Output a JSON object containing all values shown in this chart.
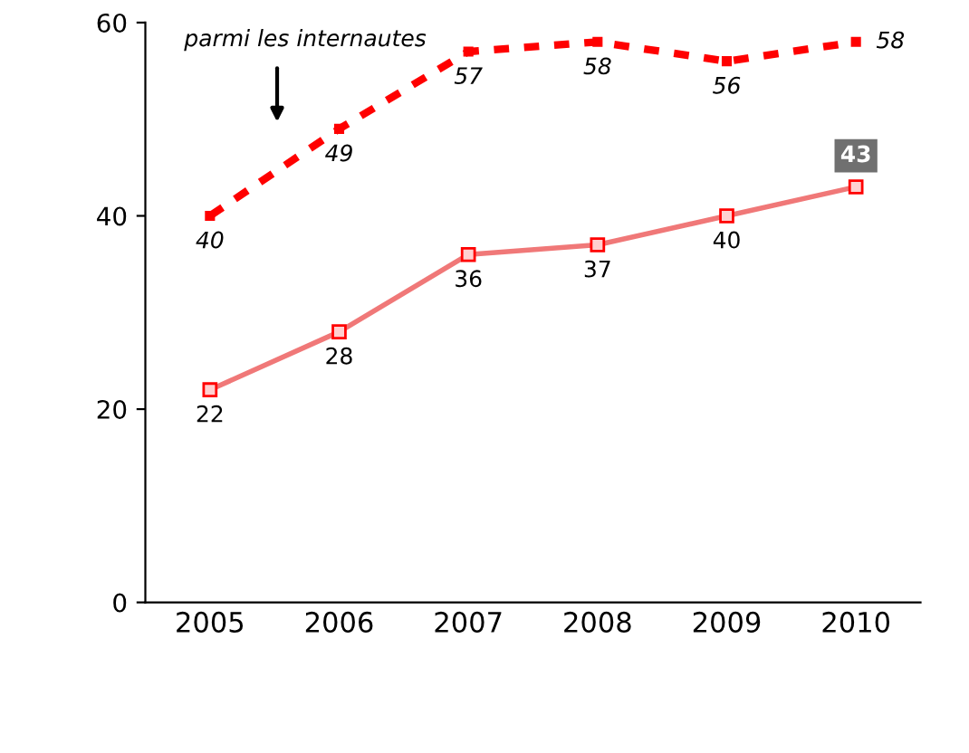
{
  "chart_data": {
    "type": "line",
    "categories": [
      "2005",
      "2006",
      "2007",
      "2008",
      "2009",
      "2010"
    ],
    "series": [
      {
        "color": "#ff0000",
        "values": [
          40,
          49,
          57,
          58,
          56,
          58
        ],
        "line_style": "dashed",
        "marker": "square"
      },
      {
        "color": "#f07878",
        "values": [
          22,
          28,
          36,
          37,
          40,
          43
        ],
        "line_style": "solid",
        "marker": "square"
      }
    ],
    "ylim": [
      0,
      60
    ],
    "yticks": [
      0,
      20,
      40,
      60
    ],
    "data_labels": true,
    "grid": false,
    "annotations": [
      "parmi les internautes"
    ]
  }
}
